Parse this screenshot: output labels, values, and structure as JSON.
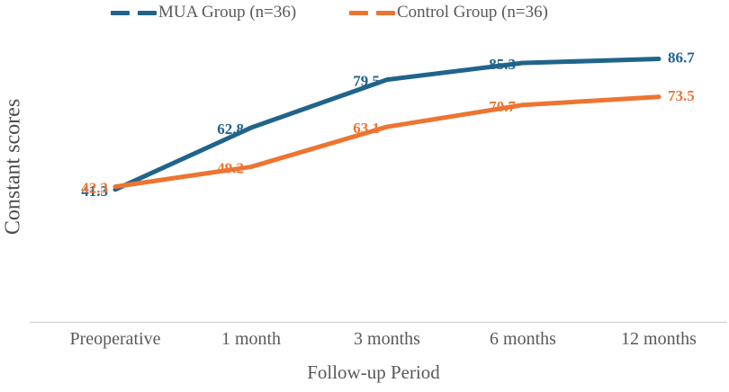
{
  "chart_data": {
    "type": "line",
    "categories": [
      "Preoperative",
      "1 month",
      "3 months",
      "6 months",
      "12 months"
    ],
    "series": [
      {
        "name": "MUA Group (n=36)",
        "color": "#20648B",
        "values": [
          41.3,
          62.8,
          79.5,
          85.3,
          86.7
        ]
      },
      {
        "name": "Control Group (n=36)",
        "color": "#ED7431",
        "values": [
          42.3,
          49.2,
          63.1,
          70.7,
          73.5
        ]
      }
    ],
    "title": "",
    "xlabel": "Follow-up Period",
    "ylabel": "Constant scores",
    "ylim": [
      0,
      100
    ],
    "grid": false,
    "legend_position": "top",
    "line_style": "long-dash (appears solid)",
    "data_labels_shown": true
  },
  "colors": {
    "axis_line": "#D9D9D9",
    "tick_text": "#595959",
    "axis_title_text": "#4c4c4c"
  }
}
